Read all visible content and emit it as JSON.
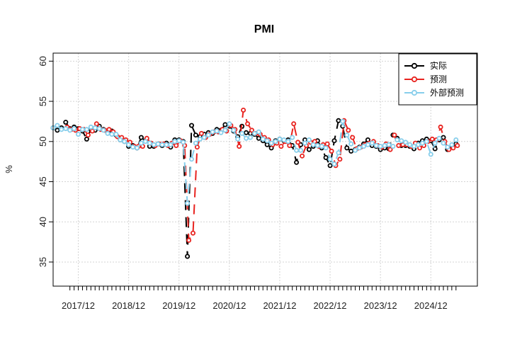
{
  "chart_data": {
    "type": "line",
    "title": "PMI",
    "xlabel": "",
    "ylabel": "%",
    "ylim": [
      32,
      61
    ],
    "y_ticks": [
      35,
      40,
      45,
      50,
      55,
      60
    ],
    "x_tick_labels": [
      "2017/12",
      "2018/12",
      "2019/12",
      "2020/12",
      "2021/12",
      "2022/12",
      "2023/12",
      "2024/12"
    ],
    "grid": true,
    "legend_position": "top-right",
    "months": [
      "2017-06",
      "2017-07",
      "2017-08",
      "2017-09",
      "2017-10",
      "2017-11",
      "2017-12",
      "2018-01",
      "2018-02",
      "2018-03",
      "2018-04",
      "2018-05",
      "2018-06",
      "2018-07",
      "2018-08",
      "2018-09",
      "2018-10",
      "2018-11",
      "2018-12",
      "2019-01",
      "2019-02",
      "2019-03",
      "2019-04",
      "2019-05",
      "2019-06",
      "2019-07",
      "2019-08",
      "2019-09",
      "2019-10",
      "2019-11",
      "2019-12",
      "2020-01",
      "2020-02",
      "2020-03",
      "2020-04",
      "2020-05",
      "2020-06",
      "2020-07",
      "2020-08",
      "2020-09",
      "2020-10",
      "2020-11",
      "2020-12",
      "2021-01",
      "2021-02",
      "2021-03",
      "2021-04",
      "2021-05",
      "2021-06",
      "2021-07",
      "2021-08",
      "2021-09",
      "2021-10",
      "2021-11",
      "2021-12",
      "2022-01",
      "2022-02",
      "2022-03",
      "2022-04",
      "2022-05",
      "2022-06",
      "2022-07",
      "2022-08",
      "2022-09",
      "2022-10",
      "2022-11",
      "2022-12",
      "2023-01",
      "2023-02",
      "2023-03",
      "2023-04",
      "2023-05",
      "2023-06",
      "2023-07",
      "2023-08",
      "2023-09",
      "2023-10",
      "2023-11",
      "2023-12",
      "2024-01",
      "2024-02",
      "2024-03",
      "2024-04",
      "2024-05",
      "2024-06",
      "2024-07",
      "2024-08",
      "2024-09",
      "2024-10",
      "2024-11",
      "2024-12",
      "2025-01",
      "2025-02",
      "2025-03",
      "2025-04",
      "2025-05",
      "2025-06"
    ],
    "series": [
      {
        "name": "实际",
        "color": "#000000",
        "values": [
          51.7,
          51.4,
          51.7,
          52.4,
          51.6,
          51.8,
          51.6,
          51.3,
          50.3,
          51.5,
          51.4,
          51.9,
          51.5,
          51.2,
          51.3,
          50.8,
          50.2,
          50.0,
          49.4,
          49.5,
          49.2,
          50.5,
          50.1,
          49.4,
          49.4,
          49.7,
          49.5,
          49.8,
          49.3,
          50.2,
          50.2,
          50.0,
          35.7,
          52.0,
          50.8,
          50.6,
          50.9,
          51.1,
          51.0,
          51.5,
          51.4,
          52.1,
          51.9,
          51.3,
          50.6,
          51.9,
          51.1,
          51.0,
          50.9,
          50.4,
          50.1,
          49.6,
          49.2,
          50.1,
          50.3,
          50.1,
          50.2,
          49.5,
          47.4,
          49.6,
          50.2,
          49.0,
          49.4,
          50.1,
          49.2,
          48.0,
          47.0,
          50.1,
          52.6,
          51.9,
          49.2,
          48.8,
          49.0,
          49.3,
          49.7,
          50.2,
          49.5,
          49.4,
          49.0,
          49.2,
          49.1,
          50.8,
          50.4,
          49.5,
          49.5,
          49.4,
          49.1,
          49.8,
          50.1,
          50.3,
          50.1,
          49.1,
          50.2,
          50.5,
          49.0,
          49.5,
          49.7
        ]
      },
      {
        "name": "预测",
        "color": "#e8231f",
        "values": [
          null,
          null,
          null,
          51.8,
          51.5,
          51.4,
          51.6,
          51.5,
          50.8,
          51.3,
          52.2,
          51.5,
          51.4,
          51.5,
          51.2,
          50.6,
          50.5,
          50.2,
          49.9,
          49.4,
          49.4,
          49.4,
          50.4,
          49.8,
          49.5,
          49.7,
          49.7,
          49.5,
          49.8,
          49.5,
          50.1,
          49.5,
          37.7,
          38.6,
          49.3,
          51.0,
          50.5,
          50.9,
          51.2,
          51.2,
          51.5,
          51.3,
          52.0,
          51.5,
          49.4,
          53.9,
          52.2,
          51.4,
          51.0,
          50.9,
          50.5,
          50.2,
          49.6,
          49.8,
          49.4,
          50.0,
          49.5,
          52.2,
          49.9,
          48.2,
          49.5,
          49.9,
          50.0,
          49.4,
          49.6,
          49.7,
          48.8,
          47.0,
          47.8,
          52.6,
          51.4,
          50.5,
          49.1,
          49.3,
          49.6,
          49.8,
          50.0,
          49.5,
          49.3,
          49.7,
          49.0,
          50.8,
          49.5,
          49.6,
          49.6,
          49.4,
          49.8,
          49.2,
          49.5,
          50.0,
          50.3,
          50.2,
          51.8,
          50.0,
          49.0,
          49.2,
          49.5
        ]
      },
      {
        "name": "外部预测",
        "color": "#87ceeb",
        "values": [
          51.7,
          52.0,
          51.5,
          51.6,
          51.4,
          51.6,
          50.9,
          51.5,
          51.5,
          51.8,
          51.7,
          51.6,
          51.4,
          51.0,
          50.9,
          50.9,
          50.2,
          50.0,
          49.6,
          49.3,
          49.2,
          49.8,
          50.0,
          49.8,
          49.6,
          49.7,
          49.6,
          49.6,
          49.6,
          50.0,
          50.1,
          49.9,
          42.3,
          47.8,
          49.8,
          50.3,
          50.5,
          50.8,
          51.2,
          51.3,
          51.1,
          51.4,
          52.2,
          51.4,
          50.3,
          51.0,
          50.4,
          50.5,
          51.0,
          51.2,
          50.3,
          50.1,
          49.8,
          50.0,
          50.3,
          50.2,
          50.0,
          50.5,
          48.9,
          48.9,
          49.8,
          50.2,
          49.6,
          49.5,
          49.4,
          49.2,
          47.8,
          47.2,
          48.6,
          52.5,
          50.8,
          49.7,
          48.9,
          49.2,
          49.4,
          49.6,
          49.8,
          49.5,
          49.4,
          49.5,
          49.6,
          49.4,
          50.2,
          50.1,
          49.9,
          49.6,
          49.4,
          49.6,
          49.8,
          50.0,
          48.4,
          49.8,
          50.4,
          49.8,
          49.3,
          49.6,
          50.2
        ]
      }
    ]
  }
}
